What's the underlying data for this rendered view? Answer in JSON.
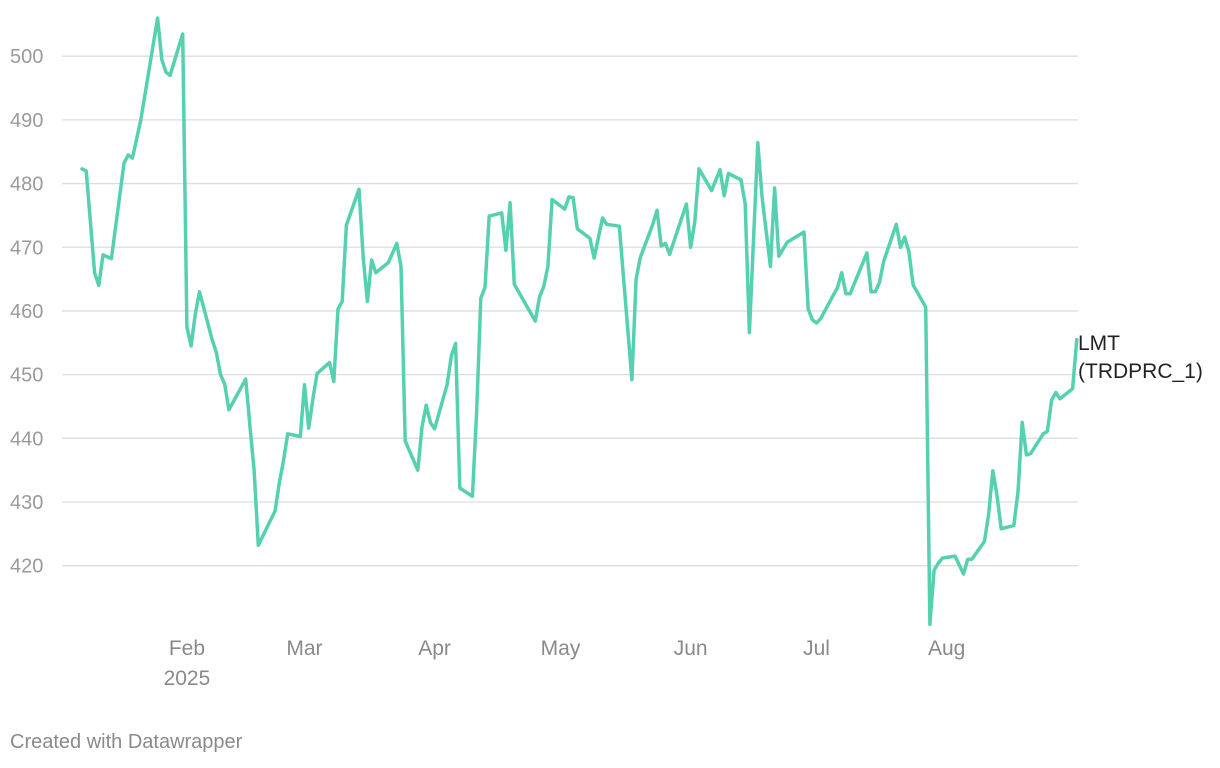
{
  "chart_data": {
    "type": "line",
    "title": "",
    "xlabel": "",
    "ylabel": "",
    "x_ticks": [
      {
        "date": "2025-02-01",
        "label": "Feb",
        "sublabel": "2025"
      },
      {
        "date": "2025-03-01",
        "label": "Mar"
      },
      {
        "date": "2025-04-01",
        "label": "Apr"
      },
      {
        "date": "2025-05-01",
        "label": "May"
      },
      {
        "date": "2025-06-01",
        "label": "Jun"
      },
      {
        "date": "2025-07-01",
        "label": "Jul"
      },
      {
        "date": "2025-08-01",
        "label": "Aug"
      }
    ],
    "y_ticks": [
      420,
      430,
      440,
      450,
      460,
      470,
      480,
      490,
      500
    ],
    "ylim": [
      411,
      506
    ],
    "xlim": [
      "2025-01-07",
      "2025-08-28"
    ],
    "grid": true,
    "color": "#55d1b0",
    "series": [
      {
        "name": "LMT (TRDPRC_1)",
        "label_lines": [
          "LMT",
          "(TRDPRC_1)"
        ],
        "points": [
          [
            "2025-01-07",
            482.3
          ],
          [
            "2025-01-08",
            482.0
          ],
          [
            "2025-01-10",
            466.0
          ],
          [
            "2025-01-11",
            464.0
          ],
          [
            "2025-01-12",
            468.8
          ],
          [
            "2025-01-14",
            468.2
          ],
          [
            "2025-01-17",
            483.2
          ],
          [
            "2025-01-18",
            484.5
          ],
          [
            "2025-01-19",
            484.0
          ],
          [
            "2025-01-21",
            490.0
          ],
          [
            "2025-01-25",
            506.0
          ],
          [
            "2025-01-26",
            499.5
          ],
          [
            "2025-01-27",
            497.5
          ],
          [
            "2025-01-28",
            497.0
          ],
          [
            "2025-01-31",
            503.5
          ],
          [
            "2025-02-01",
            457.5
          ],
          [
            "2025-02-02",
            454.5
          ],
          [
            "2025-02-03",
            459.5
          ],
          [
            "2025-02-04",
            463.0
          ],
          [
            "2025-02-07",
            455.5
          ],
          [
            "2025-02-08",
            453.5
          ],
          [
            "2025-02-09",
            450.0
          ],
          [
            "2025-02-10",
            448.5
          ],
          [
            "2025-02-11",
            444.5
          ],
          [
            "2025-02-15",
            449.3
          ],
          [
            "2025-02-16",
            442.0
          ],
          [
            "2025-02-17",
            435.0
          ],
          [
            "2025-02-18",
            423.2
          ],
          [
            "2025-02-22",
            428.6
          ],
          [
            "2025-02-23",
            433.0
          ],
          [
            "2025-02-24",
            436.5
          ],
          [
            "2025-02-25",
            440.7
          ],
          [
            "2025-02-28",
            440.3
          ],
          [
            "2025-03-01",
            448.4
          ],
          [
            "2025-03-02",
            441.6
          ],
          [
            "2025-03-03",
            446.2
          ],
          [
            "2025-03-04",
            450.2
          ],
          [
            "2025-03-07",
            451.9
          ],
          [
            "2025-03-08",
            448.9
          ],
          [
            "2025-03-09",
            460.3
          ],
          [
            "2025-03-10",
            461.5
          ],
          [
            "2025-03-11",
            473.5
          ],
          [
            "2025-03-14",
            479.1
          ],
          [
            "2025-03-15",
            468.4
          ],
          [
            "2025-03-16",
            461.5
          ],
          [
            "2025-03-17",
            468.0
          ],
          [
            "2025-03-18",
            466.0
          ],
          [
            "2025-03-21",
            467.6
          ],
          [
            "2025-03-23",
            470.6
          ],
          [
            "2025-03-24",
            467.0
          ],
          [
            "2025-03-25",
            439.6
          ],
          [
            "2025-03-28",
            435.0
          ],
          [
            "2025-03-29",
            441.8
          ],
          [
            "2025-03-30",
            445.2
          ],
          [
            "2025-03-31",
            442.5
          ],
          [
            "2025-04-01",
            441.5
          ],
          [
            "2025-04-04",
            448.5
          ],
          [
            "2025-04-05",
            453.0
          ],
          [
            "2025-04-06",
            454.9
          ],
          [
            "2025-04-07",
            432.2
          ],
          [
            "2025-04-10",
            430.9
          ],
          [
            "2025-04-11",
            444.0
          ],
          [
            "2025-04-12",
            462.0
          ],
          [
            "2025-04-13",
            463.7
          ],
          [
            "2025-04-14",
            474.9
          ],
          [
            "2025-04-17",
            475.4
          ],
          [
            "2025-04-18",
            469.5
          ],
          [
            "2025-04-19",
            477.0
          ],
          [
            "2025-04-20",
            464.2
          ],
          [
            "2025-04-25",
            458.4
          ],
          [
            "2025-04-26",
            462.2
          ],
          [
            "2025-04-27",
            463.8
          ],
          [
            "2025-04-28",
            467.0
          ],
          [
            "2025-04-29",
            477.5
          ],
          [
            "2025-05-02",
            476.0
          ],
          [
            "2025-05-03",
            477.9
          ],
          [
            "2025-05-04",
            477.8
          ],
          [
            "2025-05-05",
            472.9
          ],
          [
            "2025-05-08",
            471.4
          ],
          [
            "2025-05-09",
            468.3
          ],
          [
            "2025-05-11",
            474.6
          ],
          [
            "2025-05-12",
            473.6
          ],
          [
            "2025-05-15",
            473.3
          ],
          [
            "2025-05-18",
            449.2
          ],
          [
            "2025-05-19",
            465.0
          ],
          [
            "2025-05-20",
            468.4
          ],
          [
            "2025-05-23",
            473.6
          ],
          [
            "2025-05-24",
            475.8
          ],
          [
            "2025-05-25",
            470.2
          ],
          [
            "2025-05-26",
            470.6
          ],
          [
            "2025-05-27",
            468.9
          ],
          [
            "2025-05-31",
            476.8
          ],
          [
            "2025-06-01",
            470.0
          ],
          [
            "2025-06-02",
            474.0
          ],
          [
            "2025-06-03",
            482.3
          ],
          [
            "2025-06-06",
            478.9
          ],
          [
            "2025-06-08",
            482.2
          ],
          [
            "2025-06-09",
            478.1
          ],
          [
            "2025-06-10",
            481.6
          ],
          [
            "2025-06-13",
            480.6
          ],
          [
            "2025-06-14",
            476.8
          ],
          [
            "2025-06-15",
            456.6
          ],
          [
            "2025-06-17",
            486.4
          ],
          [
            "2025-06-18",
            478.0
          ],
          [
            "2025-06-20",
            467.0
          ],
          [
            "2025-06-21",
            479.3
          ],
          [
            "2025-06-22",
            468.6
          ],
          [
            "2025-06-24",
            470.8
          ],
          [
            "2025-06-28",
            472.4
          ],
          [
            "2025-06-29",
            460.3
          ],
          [
            "2025-06-30",
            458.6
          ],
          [
            "2025-07-01",
            458.1
          ],
          [
            "2025-07-02",
            458.8
          ],
          [
            "2025-07-06",
            463.7
          ],
          [
            "2025-07-07",
            466.0
          ],
          [
            "2025-07-08",
            462.7
          ],
          [
            "2025-07-09",
            462.7
          ],
          [
            "2025-07-13",
            469.1
          ],
          [
            "2025-07-14",
            463.0
          ],
          [
            "2025-07-15",
            463.0
          ],
          [
            "2025-07-16",
            464.5
          ],
          [
            "2025-07-17",
            467.8
          ],
          [
            "2025-07-20",
            473.6
          ],
          [
            "2025-07-21",
            470.0
          ],
          [
            "2025-07-22",
            471.6
          ],
          [
            "2025-07-23",
            469.3
          ],
          [
            "2025-07-24",
            464.1
          ],
          [
            "2025-07-27",
            460.6
          ],
          [
            "2025-07-28",
            410.8
          ],
          [
            "2025-07-29",
            419.3
          ],
          [
            "2025-07-30",
            420.4
          ],
          [
            "2025-07-31",
            421.2
          ],
          [
            "2025-08-03",
            421.5
          ],
          [
            "2025-08-05",
            418.7
          ],
          [
            "2025-08-06",
            421.0
          ],
          [
            "2025-08-07",
            421.0
          ],
          [
            "2025-08-10",
            423.8
          ],
          [
            "2025-08-11",
            428.0
          ],
          [
            "2025-08-12",
            434.9
          ],
          [
            "2025-08-13",
            431.0
          ],
          [
            "2025-08-14",
            425.8
          ],
          [
            "2025-08-17",
            426.3
          ],
          [
            "2025-08-18",
            431.6
          ],
          [
            "2025-08-19",
            442.5
          ],
          [
            "2025-08-20",
            437.4
          ],
          [
            "2025-08-21",
            437.6
          ],
          [
            "2025-08-24",
            440.7
          ],
          [
            "2025-08-25",
            441.1
          ],
          [
            "2025-08-26",
            446.0
          ],
          [
            "2025-08-27",
            447.2
          ],
          [
            "2025-08-28",
            446.2
          ],
          [
            "2025-08-31",
            447.8
          ],
          [
            "2025-09-01",
            455.5
          ]
        ]
      }
    ]
  },
  "footer": {
    "credit": "Created with Datawrapper"
  }
}
